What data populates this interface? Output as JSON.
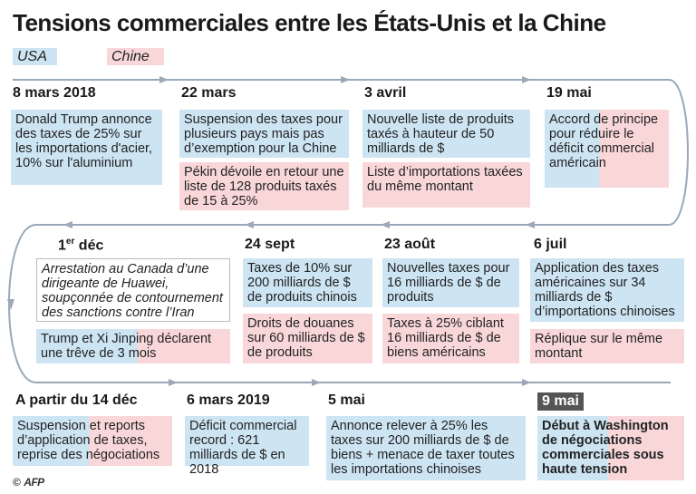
{
  "title": "Tensions commerciales entre les États-Unis et la Chine",
  "legend": {
    "usa": "USA",
    "chine": "Chine"
  },
  "colors": {
    "usa": "#cde4f3",
    "chine": "#f9d7d9",
    "timeline": "#9aa8b8",
    "highlight_date": "#555555"
  },
  "row1": {
    "d1": {
      "date": "8 mars 2018",
      "usa": "Donald Trump annonce des taxes de 25% sur les importations d'acier, 10% sur l'aluminium"
    },
    "d2": {
      "date": "22 mars",
      "usa": "Suspension des taxes pour plusieurs pays mais pas d’exemption pour la Chine",
      "chine": "Pékin dévoile en retour une liste de 128 produits taxés de 15 à 25%"
    },
    "d3": {
      "date": "3 avril",
      "usa": "Nouvelle liste de produits taxés à hauteur de 50 milliards de $",
      "chine": "Liste d’importations taxées du même montant"
    },
    "d4": {
      "date": "19 mai",
      "both": "Accord de principe pour réduire le déficit commercial américain"
    }
  },
  "row2": {
    "d1": {
      "date_main": "1",
      "date_sup": "er",
      "date_rest": " déc",
      "event": "Arrestation au Canada d’une dirigeante de Huawei, soupçonnée de contournement des sanctions contre l’Iran",
      "both": "Trump et Xi Jinping déclarent une trêve de 3 mois"
    },
    "d2": {
      "date": "24 sept",
      "usa": "Taxes de 10% sur 200 milliards de $ de produits chinois",
      "chine": "Droits de douanes sur 60 milliards de $ de produits"
    },
    "d3": {
      "date": "23 août",
      "usa": "Nouvelles taxes pour 16 milliards de $ de produits",
      "chine": "Taxes à 25% ciblant 16 milliards de $ de biens américains"
    },
    "d4": {
      "date": "6 juil",
      "usa": "Application des taxes américaines sur 34 milliards de $ d’importations chinoises",
      "chine": "Réplique sur le même montant"
    }
  },
  "row3": {
    "d1": {
      "date": "A partir du 14 déc",
      "both": "Suspension et reports d’application de taxes, reprise des négociations"
    },
    "d2": {
      "date": "6 mars 2019",
      "usa": "Déficit commercial record : 621 milliards de $ en 2018"
    },
    "d3": {
      "date": "5 mai",
      "usa": "Annonce relever à 25% les taxes sur 200 milliards de $ de biens + menace de taxer toutes les importations chinoises"
    },
    "d4": {
      "date": "9 mai",
      "both": "Début à Washington de négociations commerciales sous haute tension"
    }
  },
  "credit": {
    "copyright": "©",
    "logo": "AFP"
  }
}
